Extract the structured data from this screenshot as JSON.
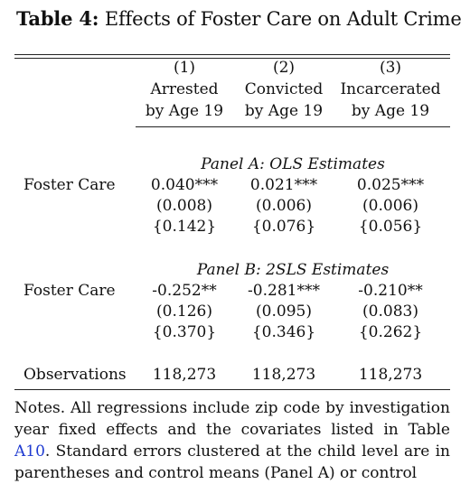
{
  "title": {
    "label": "Table 4:",
    "text": "Effects of Foster Care on Adult Crime"
  },
  "columns": [
    {
      "number": "(1)",
      "line1": "Arrested",
      "line2": "by Age 19"
    },
    {
      "number": "(2)",
      "line1": "Convicted",
      "line2": "by Age 19"
    },
    {
      "number": "(3)",
      "line1": "Incarcerated",
      "line2": "by Age 19"
    }
  ],
  "panel_a": {
    "heading": "Panel A: OLS Estimates",
    "row_label": "Foster Care",
    "coefficients": [
      "0.040***",
      "0.021***",
      "0.025***"
    ],
    "std_errors": [
      "(0.008)",
      "(0.006)",
      "(0.006)"
    ],
    "means": [
      "{0.142}",
      "{0.076}",
      "{0.056}"
    ]
  },
  "panel_b": {
    "heading": "Panel B: 2SLS Estimates",
    "row_label": "Foster Care",
    "coefficients": [
      "-0.252**",
      "-0.281***",
      "-0.210**"
    ],
    "std_errors": [
      "(0.126)",
      "(0.095)",
      "(0.083)"
    ],
    "means": [
      "{0.370}",
      "{0.346}",
      "{0.262}"
    ]
  },
  "observations": {
    "label": "Observations",
    "values": [
      "118,273",
      "118,273",
      "118,273"
    ]
  },
  "notes": {
    "before_link": "Notes. All regressions include zip code by investigation year fixed effects and the covariates listed in Table ",
    "link_text": "A10",
    "after_link": ". Standard errors clustered at the child level are in parentheses and control means (Panel A) or control"
  },
  "colors": {
    "text": "#111111",
    "link": "#1f3bd1"
  }
}
